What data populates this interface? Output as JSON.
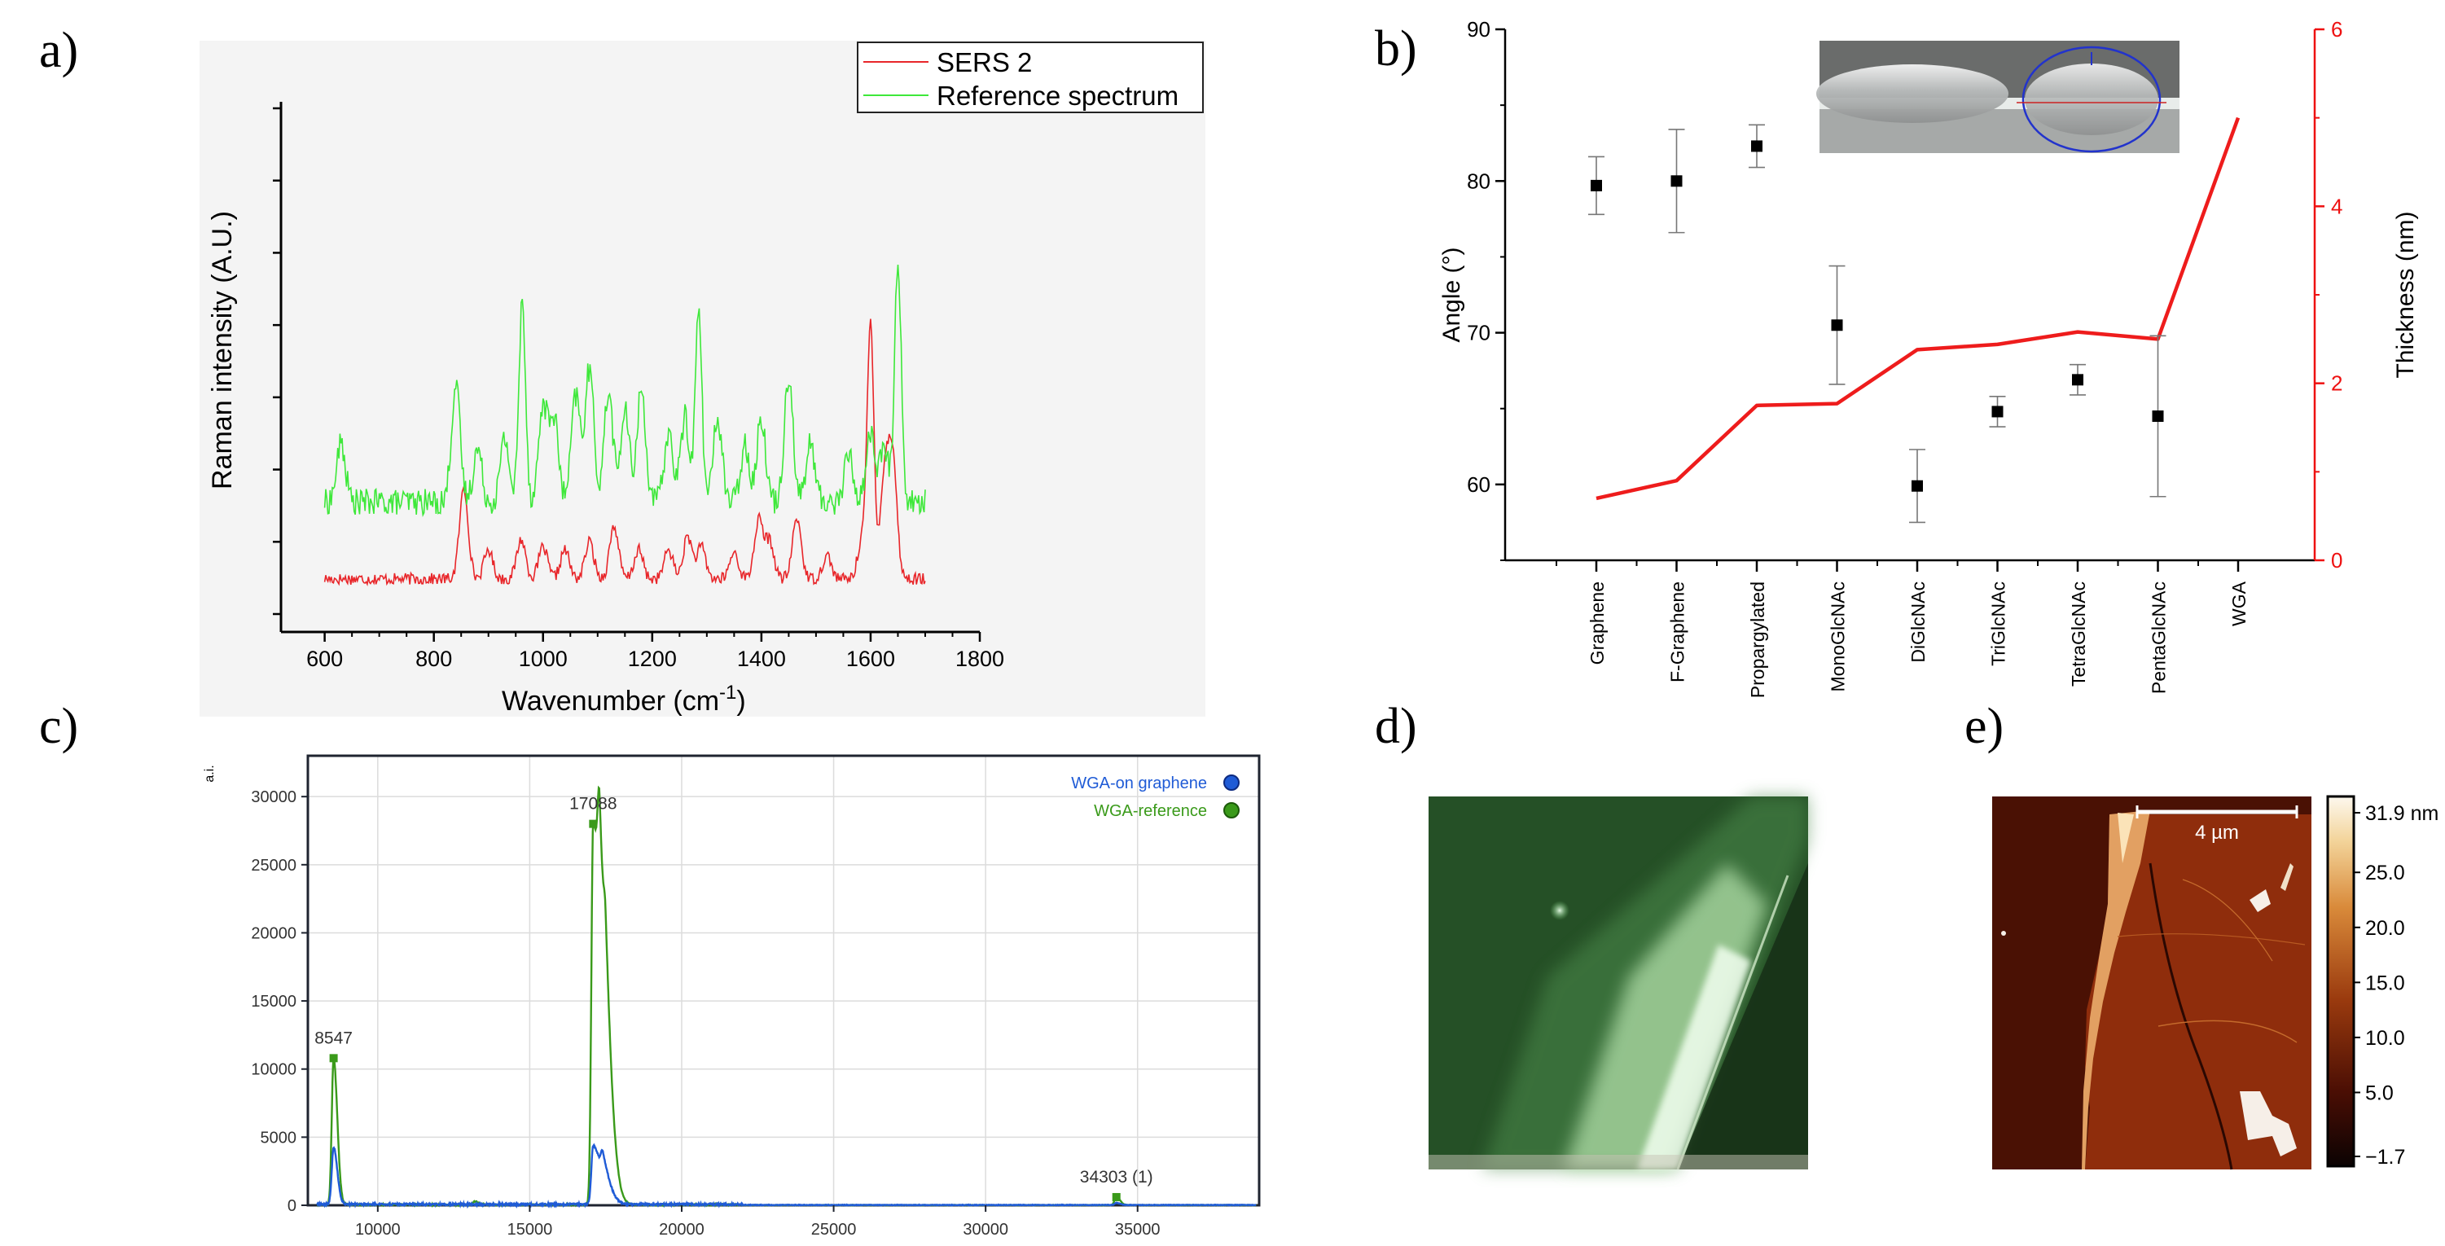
{
  "chart_data": [
    {
      "panel": "a)",
      "type": "line",
      "xlabel": "Wavenumber (cm",
      "xlabel_sup": "-1",
      "xlabel_end": ")",
      "ylabel": "Raman intensity (A.U.)",
      "xlim": [
        520,
        1800
      ],
      "ylim": [
        0,
        10
      ],
      "xticks": [
        "600",
        "800",
        "1000",
        "1200",
        "1400",
        "1600",
        "1800"
      ],
      "xtick_values": [
        600,
        800,
        1000,
        1200,
        1400,
        1600,
        1800
      ],
      "y_tick_count": 8,
      "legend_position": "top-right",
      "series": [
        {
          "name": "SERS 2",
          "color": "#e8262a",
          "baseline": 1.0,
          "peaks": [
            [
              855,
              1.7
            ],
            [
              900,
              0.55
            ],
            [
              960,
              0.75
            ],
            [
              1000,
              0.6
            ],
            [
              1040,
              0.55
            ],
            [
              1085,
              0.7
            ],
            [
              1130,
              1.0
            ],
            [
              1175,
              0.55
            ],
            [
              1230,
              0.55
            ],
            [
              1265,
              0.8
            ],
            [
              1290,
              0.6
            ],
            [
              1350,
              0.5
            ],
            [
              1395,
              1.1
            ],
            [
              1415,
              0.7
            ],
            [
              1465,
              1.15
            ],
            [
              1520,
              0.45
            ],
            [
              1585,
              0.8
            ],
            [
              1600,
              4.7
            ],
            [
              1625,
              1.8
            ],
            [
              1640,
              2.3
            ]
          ],
          "x": [
            600,
            1700
          ]
        },
        {
          "name": "Reference spectrum",
          "color": "#3ee83a",
          "baseline": 2.45,
          "peaks": [
            [
              630,
              1.1
            ],
            [
              840,
              2.2
            ],
            [
              880,
              1.0
            ],
            [
              930,
              1.2
            ],
            [
              962,
              3.8
            ],
            [
              1000,
              1.8
            ],
            [
              1020,
              1.6
            ],
            [
              1060,
              2.0
            ],
            [
              1085,
              2.5
            ],
            [
              1120,
              2.1
            ],
            [
              1150,
              1.7
            ],
            [
              1180,
              2.1
            ],
            [
              1230,
              1.3
            ],
            [
              1260,
              1.6
            ],
            [
              1285,
              3.6
            ],
            [
              1320,
              1.6
            ],
            [
              1370,
              1.1
            ],
            [
              1400,
              1.6
            ],
            [
              1450,
              2.4
            ],
            [
              1490,
              1.1
            ],
            [
              1560,
              0.9
            ],
            [
              1600,
              1.3
            ],
            [
              1625,
              1.0
            ],
            [
              1650,
              4.6
            ]
          ],
          "x": [
            600,
            1700
          ]
        }
      ]
    },
    {
      "panel": "b)",
      "type": "scatter",
      "categories": [
        "Graphene",
        "F-Graphene",
        "Propargylated",
        "MonoGlcNAc",
        "DiGlcNAc",
        "TriGlcNAc",
        "TetraGlcNAc",
        "PentaGlcNAc",
        "WGA"
      ],
      "ylabel": "Angle (°)",
      "y2label": "Thickness (nm)",
      "ylim": [
        55,
        90
      ],
      "yticks": [
        "60",
        "70",
        "80",
        "90"
      ],
      "y2lim": [
        0,
        6
      ],
      "y2ticks": [
        "0",
        "2",
        "4",
        "6"
      ],
      "series": [
        {
          "name": "",
          "kind": "scatter-errorbar",
          "axis": "left",
          "color": "#000000",
          "values": [
            79.7,
            80.0,
            82.3,
            70.5,
            59.9,
            64.8,
            66.9,
            64.5,
            null
          ],
          "errors": [
            1.9,
            3.4,
            1.4,
            3.9,
            2.4,
            1.0,
            1.0,
            5.3,
            null
          ]
        },
        {
          "name": "",
          "kind": "line",
          "axis": "right",
          "color": "#ee1c1c",
          "values": [
            0.7,
            0.9,
            1.75,
            1.77,
            2.38,
            2.44,
            2.58,
            2.5,
            5.0
          ]
        }
      ]
    },
    {
      "panel": "c)",
      "type": "line",
      "ylabel": "a.i.",
      "xlim": [
        7700,
        39000
      ],
      "ylim": [
        0,
        33000
      ],
      "xticks": [
        "10000",
        "15000",
        "20000",
        "25000",
        "30000",
        "35000"
      ],
      "xtick_values": [
        10000,
        15000,
        20000,
        25000,
        30000,
        35000
      ],
      "yticks": [
        "0",
        "5000",
        "10000",
        "15000",
        "20000",
        "25000",
        "30000"
      ],
      "ytick_values": [
        0,
        5000,
        10000,
        15000,
        20000,
        25000,
        30000
      ],
      "legend_position": "top-right",
      "annotations": [
        {
          "text": "8547",
          "x": 8547,
          "y": 10800
        },
        {
          "text": "17088",
          "x": 17088,
          "y": 28000
        },
        {
          "text": "34303 (1)",
          "x": 34303,
          "y": 600
        }
      ],
      "series": [
        {
          "name": "WGA-on graphene",
          "color": "#1f5bd6",
          "peaks": [
            [
              8547,
              4200
            ],
            [
              17088,
              4300
            ],
            [
              17400,
              1800
            ],
            [
              34303,
              150
            ]
          ]
        },
        {
          "name": "WGA-reference",
          "color": "#3a9a1a",
          "peaks": [
            [
              8547,
              10800
            ],
            [
              17088,
              28000
            ],
            [
              17300,
              9800
            ],
            [
              17500,
              6000
            ],
            [
              13200,
              250
            ],
            [
              34303,
              600
            ]
          ]
        }
      ]
    }
  ],
  "labels": {
    "panel_a": "a)",
    "panel_b": "b)",
    "panel_c": "c)",
    "panel_d": "d)",
    "panel_e": "e)"
  },
  "afm": {
    "scale_label": "4 µm",
    "colorbar_ticks": [
      "31.9 nm",
      "25.0",
      "20.0",
      "15.0",
      "10.0",
      "5.0",
      "−1.7"
    ]
  },
  "colors": {
    "sers": "#e8262a",
    "reference": "#3ee83a",
    "thickness": "#ee1c1c",
    "wga_graphene": "#1f5bd6",
    "wga_reference": "#3a9a1a"
  }
}
